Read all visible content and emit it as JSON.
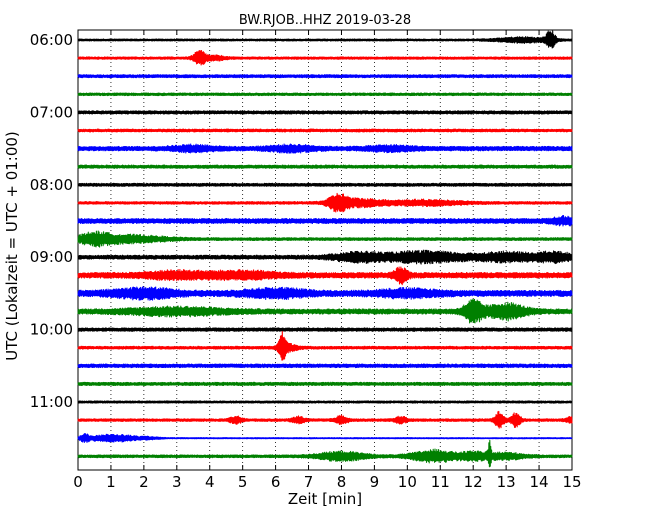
{
  "chart_data": {
    "type": "line",
    "title": "BW.RJOB..HHZ 2019-03-28",
    "xlabel": "Zeit  [min]",
    "ylabel": "UTC (Lokalzeit = UTC + 01:00)",
    "xlim": [
      0,
      15
    ],
    "x_ticks": [
      "0",
      "1",
      "2",
      "3",
      "4",
      "5",
      "6",
      "7",
      "8",
      "9",
      "10",
      "11",
      "12",
      "13",
      "14",
      "15"
    ],
    "y_ticks": [
      "06:00",
      "07:00",
      "08:00",
      "09:00",
      "10:00",
      "11:00"
    ],
    "grid": {
      "x": true,
      "y": false,
      "style": "dotted"
    },
    "colors": {
      "black": "#000000",
      "red": "#ff0000",
      "blue": "#0000ff",
      "green": "#008000"
    },
    "series": [
      {
        "start": "06:00",
        "color": "black",
        "noise": 1.0,
        "events": [
          [
            14.35,
            9,
            0.15
          ],
          [
            13.5,
            2.5,
            0.8
          ]
        ]
      },
      {
        "start": "06:15",
        "color": "red",
        "noise": 1.2,
        "events": [
          [
            3.7,
            7,
            0.2
          ],
          [
            4.2,
            2,
            0.3
          ]
        ]
      },
      {
        "start": "06:30",
        "color": "blue",
        "noise": 1.5,
        "events": []
      },
      {
        "start": "06:45",
        "color": "green",
        "noise": 1.3,
        "events": []
      },
      {
        "start": "07:00",
        "color": "black",
        "noise": 1.6,
        "events": []
      },
      {
        "start": "07:15",
        "color": "red",
        "noise": 1.4,
        "events": []
      },
      {
        "start": "07:30",
        "color": "blue",
        "noise": 2.2,
        "events": [
          [
            3.5,
            2.5,
            0.7
          ],
          [
            6.5,
            2.5,
            0.8
          ],
          [
            9.5,
            2,
            0.8
          ]
        ]
      },
      {
        "start": "07:45",
        "color": "green",
        "noise": 1.6,
        "events": []
      },
      {
        "start": "08:00",
        "color": "black",
        "noise": 1.5,
        "events": []
      },
      {
        "start": "08:15",
        "color": "red",
        "noise": 1.3,
        "events": [
          [
            7.9,
            7,
            0.3
          ],
          [
            8.5,
            3.5,
            0.8
          ],
          [
            10.5,
            2.5,
            1.2
          ]
        ]
      },
      {
        "start": "08:30",
        "color": "blue",
        "noise": 2.5,
        "events": [
          [
            14.8,
            3,
            0.4
          ]
        ]
      },
      {
        "start": "08:45",
        "color": "green",
        "noise": 1.4,
        "events": [
          [
            0.5,
            5,
            0.5
          ],
          [
            1.5,
            3.5,
            1.2
          ]
        ]
      },
      {
        "start": "09:00",
        "color": "black",
        "noise": 2.0,
        "events": [
          [
            8.5,
            4,
            0.8
          ],
          [
            10.5,
            5,
            1.2
          ],
          [
            13.0,
            4,
            1.0
          ],
          [
            14.5,
            4,
            0.6
          ]
        ]
      },
      {
        "start": "09:15",
        "color": "red",
        "noise": 2.8,
        "events": [
          [
            9.8,
            7,
            0.2
          ],
          [
            3.0,
            3,
            1.0
          ],
          [
            5.0,
            3,
            1.0
          ]
        ]
      },
      {
        "start": "09:30",
        "color": "blue",
        "noise": 3.0,
        "events": [
          [
            2.0,
            4,
            1.0
          ],
          [
            6.0,
            3.5,
            1.0
          ],
          [
            10.0,
            3,
            1.0
          ]
        ]
      },
      {
        "start": "09:45",
        "color": "green",
        "noise": 2.6,
        "events": [
          [
            12.0,
            10,
            0.3
          ],
          [
            13.0,
            7,
            0.6
          ],
          [
            3.0,
            3,
            1.5
          ]
        ]
      },
      {
        "start": "10:00",
        "color": "black",
        "noise": 1.7,
        "events": []
      },
      {
        "start": "10:15",
        "color": "red",
        "noise": 1.4,
        "events": [
          [
            6.2,
            13,
            0.12
          ],
          [
            6.4,
            3,
            0.3
          ]
        ]
      },
      {
        "start": "10:30",
        "color": "blue",
        "noise": 1.8,
        "events": []
      },
      {
        "start": "10:45",
        "color": "green",
        "noise": 1.6,
        "events": []
      },
      {
        "start": "11:00",
        "color": "black",
        "noise": 1.1,
        "events": []
      },
      {
        "start": "11:15",
        "color": "red",
        "noise": 1.3,
        "events": [
          [
            12.8,
            8,
            0.15
          ],
          [
            13.3,
            7,
            0.15
          ],
          [
            8.0,
            4,
            0.2
          ],
          [
            4.8,
            3,
            0.2
          ],
          [
            6.7,
            3,
            0.2
          ],
          [
            9.8,
            3,
            0.2
          ],
          [
            15.0,
            3,
            0.2
          ]
        ]
      },
      {
        "start": "11:30",
        "color": "blue",
        "noise": 0.6,
        "events": [
          [
            0.2,
            3,
            0.15
          ],
          [
            0.8,
            3,
            0.6
          ],
          [
            1.5,
            2,
            0.5
          ],
          [
            2.2,
            1,
            0.3
          ]
        ]
      },
      {
        "start": "11:45",
        "color": "green",
        "noise": 1.4,
        "events": [
          [
            12.5,
            12,
            0.05
          ],
          [
            11.0,
            4,
            0.5
          ],
          [
            8.0,
            4,
            0.8
          ],
          [
            12.0,
            4,
            0.5
          ],
          [
            10.5,
            3,
            0.6
          ],
          [
            13.0,
            3,
            0.6
          ]
        ]
      }
    ]
  }
}
